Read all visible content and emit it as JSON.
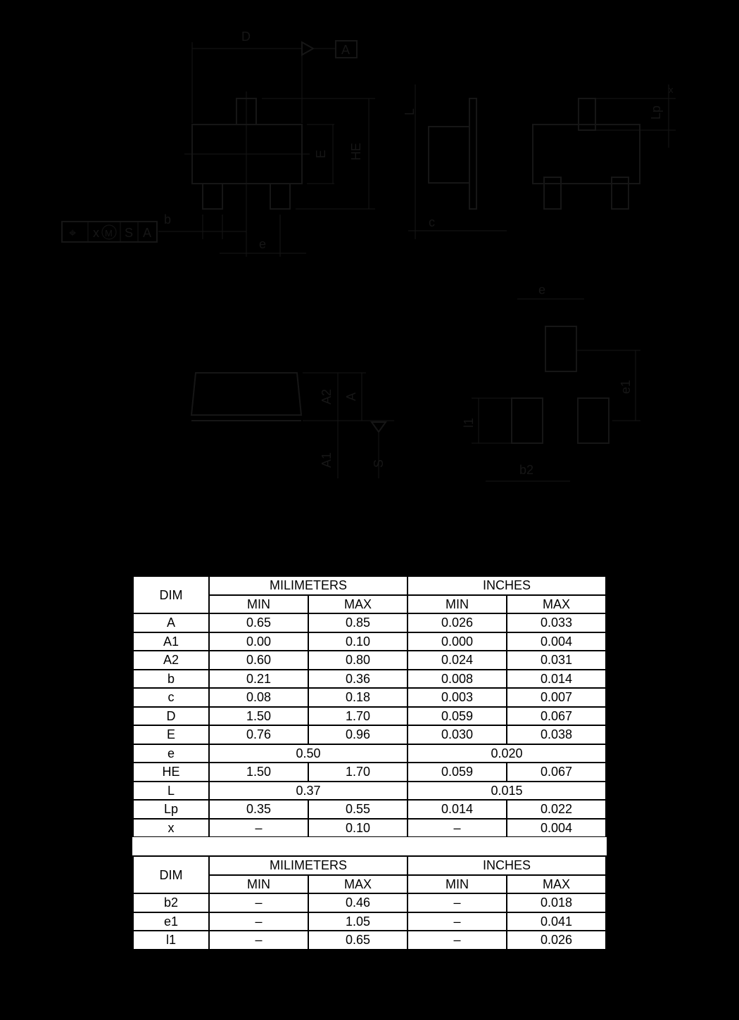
{
  "drawing": {
    "labels": {
      "D": "D",
      "A_datum": "A",
      "E": "E",
      "He": "HE",
      "b": "b",
      "e": "e",
      "tol_symbol": "⌖",
      "tol_x": "x",
      "tol_m": "M",
      "tol_s": "S",
      "tol_a": "A",
      "L": "L",
      "Lp": "Lp",
      "c": "c",
      "x": "x",
      "A": "A",
      "A1": "A1",
      "A2": "A2",
      "S": "S",
      "e_fp": "e",
      "e1": "e1",
      "l1": "l1",
      "b2": "b2"
    }
  },
  "table1": {
    "dim_header": "DIM",
    "group_headers": [
      "MILIMETERS",
      "INCHES"
    ],
    "sub_headers": [
      "MIN",
      "MAX",
      "MIN",
      "MAX"
    ],
    "rows": [
      {
        "dim": "A",
        "cells": [
          "0.65",
          "0.85",
          "0.026",
          "0.033"
        ]
      },
      {
        "dim": "A1",
        "cells": [
          "0.00",
          "0.10",
          "0.000",
          "0.004"
        ]
      },
      {
        "dim": "A2",
        "cells": [
          "0.60",
          "0.80",
          "0.024",
          "0.031"
        ]
      },
      {
        "dim": "b",
        "cells": [
          "0.21",
          "0.36",
          "0.008",
          "0.014"
        ]
      },
      {
        "dim": "c",
        "cells": [
          "0.08",
          "0.18",
          "0.003",
          "0.007"
        ]
      },
      {
        "dim": "D",
        "cells": [
          "1.50",
          "1.70",
          "0.059",
          "0.067"
        ]
      },
      {
        "dim": "E",
        "cells": [
          "0.76",
          "0.96",
          "0.030",
          "0.038"
        ]
      },
      {
        "dim": "e",
        "merged": [
          "0.50",
          "0.020"
        ]
      },
      {
        "dim": "HE",
        "cells": [
          "1.50",
          "1.70",
          "0.059",
          "0.067"
        ]
      },
      {
        "dim": "L",
        "merged": [
          "0.37",
          "0.015"
        ]
      },
      {
        "dim": "Lp",
        "cells": [
          "0.35",
          "0.55",
          "0.014",
          "0.022"
        ]
      },
      {
        "dim": "x",
        "cells": [
          "–",
          "0.10",
          "–",
          "0.004"
        ]
      }
    ]
  },
  "table2": {
    "dim_header": "DIM",
    "group_headers": [
      "MILIMETERS",
      "INCHES"
    ],
    "sub_headers": [
      "MIN",
      "MAX",
      "MIN",
      "MAX"
    ],
    "rows": [
      {
        "dim": "b2",
        "cells": [
          "–",
          "0.46",
          "–",
          "0.018"
        ]
      },
      {
        "dim": "e1",
        "cells": [
          "–",
          "1.05",
          "–",
          "0.041"
        ]
      },
      {
        "dim": "l1",
        "cells": [
          "–",
          "0.65",
          "–",
          "0.026"
        ]
      }
    ]
  }
}
